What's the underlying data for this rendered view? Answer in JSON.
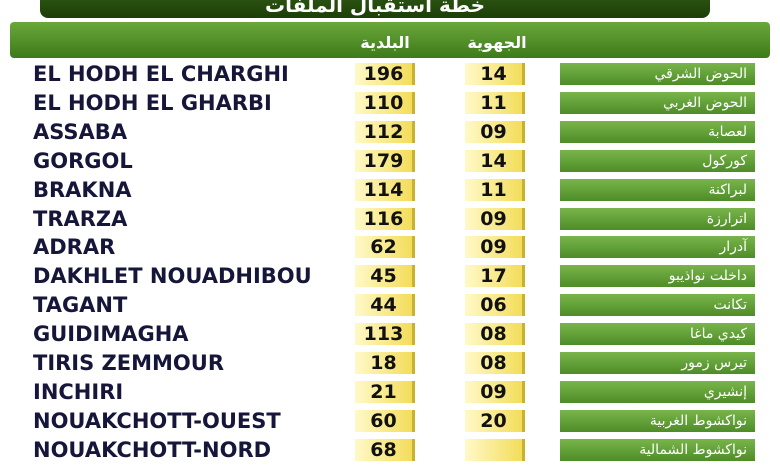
{
  "header": {
    "title": "خطة استقبال الملفات",
    "columns": {
      "municipal": "البلدية",
      "regional": "الجهوية"
    }
  },
  "table": {
    "rows": [
      [
        "EL HODH EL CHARGHI",
        "196",
        "14",
        "الحوض الشرقي"
      ],
      [
        "EL HODH EL GHARBI",
        "110",
        "11",
        "الحوض الغربي"
      ],
      [
        "ASSABA",
        "112",
        "09",
        "لعصابة"
      ],
      [
        "GORGOL",
        "179",
        "14",
        "كوركول"
      ],
      [
        "BRAKNA",
        "114",
        "11",
        "لبراكنة"
      ],
      [
        "TRARZA",
        "116",
        "09",
        "اترارزة"
      ],
      [
        "ADRAR",
        "62",
        "09",
        "آدرار"
      ],
      [
        "DAKHLET NOUADHIBOU",
        "45",
        "17",
        "داخلت نواذيبو"
      ],
      [
        "TAGANT",
        "44",
        "06",
        "تكانت"
      ],
      [
        "GUIDIMAGHA",
        "113",
        "08",
        "كيدي ماغا"
      ],
      [
        "TIRIS ZEMMOUR",
        "18",
        "08",
        "تيرس زمور"
      ],
      [
        "INCHIRI",
        "21",
        "09",
        "إنشيري"
      ],
      [
        "NOUAKCHOTT-OUEST",
        "60",
        "20",
        "نواكشوط الغربية"
      ],
      [
        "NOUAKCHOTT-NORD",
        "68",
        null,
        "نواكشوط الشمالية"
      ]
    ]
  }
}
